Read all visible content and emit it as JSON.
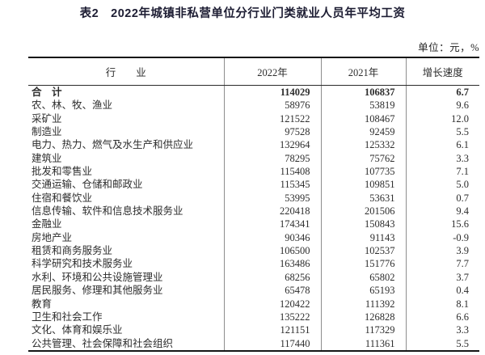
{
  "title": "表2　2022年城镇非私营单位分行业门类就业人员年平均工资",
  "unit_note": "单位：元，%",
  "table": {
    "columns": [
      "行　　业",
      "2022年",
      "2021年",
      "增长速度"
    ],
    "rows": [
      {
        "label": "合　计",
        "y2022": "114029",
        "y2021": "106837",
        "growth": "6.7",
        "bold": true
      },
      {
        "label": "农、林、牧、渔业",
        "y2022": "58976",
        "y2021": "53819",
        "growth": "9.6",
        "bold": false
      },
      {
        "label": "采矿业",
        "y2022": "121522",
        "y2021": "108467",
        "growth": "12.0",
        "bold": false
      },
      {
        "label": "制造业",
        "y2022": "97528",
        "y2021": "92459",
        "growth": "5.5",
        "bold": false
      },
      {
        "label": "电力、热力、燃气及水生产和供应业",
        "y2022": "132964",
        "y2021": "125332",
        "growth": "6.1",
        "bold": false
      },
      {
        "label": "建筑业",
        "y2022": "78295",
        "y2021": "75762",
        "growth": "3.3",
        "bold": false
      },
      {
        "label": "批发和零售业",
        "y2022": "115408",
        "y2021": "107735",
        "growth": "7.1",
        "bold": false
      },
      {
        "label": "交通运输、仓储和邮政业",
        "y2022": "115345",
        "y2021": "109851",
        "growth": "5.0",
        "bold": false
      },
      {
        "label": "住宿和餐饮业",
        "y2022": "53995",
        "y2021": "53631",
        "growth": "0.7",
        "bold": false
      },
      {
        "label": "信息传输、软件和信息技术服务业",
        "y2022": "220418",
        "y2021": "201506",
        "growth": "9.4",
        "bold": false
      },
      {
        "label": "金融业",
        "y2022": "174341",
        "y2021": "150843",
        "growth": "15.6",
        "bold": false
      },
      {
        "label": "房地产业",
        "y2022": "90346",
        "y2021": "91143",
        "growth": "-0.9",
        "bold": false
      },
      {
        "label": "租赁和商务服务业",
        "y2022": "106500",
        "y2021": "102537",
        "growth": "3.9",
        "bold": false
      },
      {
        "label": "科学研究和技术服务业",
        "y2022": "163486",
        "y2021": "151776",
        "growth": "7.7",
        "bold": false
      },
      {
        "label": "水利、环境和公共设施管理业",
        "y2022": "68256",
        "y2021": "65802",
        "growth": "3.7",
        "bold": false
      },
      {
        "label": "居民服务、修理和其他服务业",
        "y2022": "65478",
        "y2021": "65193",
        "growth": "0.4",
        "bold": false
      },
      {
        "label": "教育",
        "y2022": "120422",
        "y2021": "111392",
        "growth": "8.1",
        "bold": false
      },
      {
        "label": "卫生和社会工作",
        "y2022": "135222",
        "y2021": "126828",
        "growth": "6.6",
        "bold": false
      },
      {
        "label": "文化、体育和娱乐业",
        "y2022": "121151",
        "y2021": "117329",
        "growth": "3.3",
        "bold": false
      },
      {
        "label": "公共管理、社会保障和社会组织",
        "y2022": "117440",
        "y2021": "111361",
        "growth": "5.5",
        "bold": false
      }
    ]
  }
}
